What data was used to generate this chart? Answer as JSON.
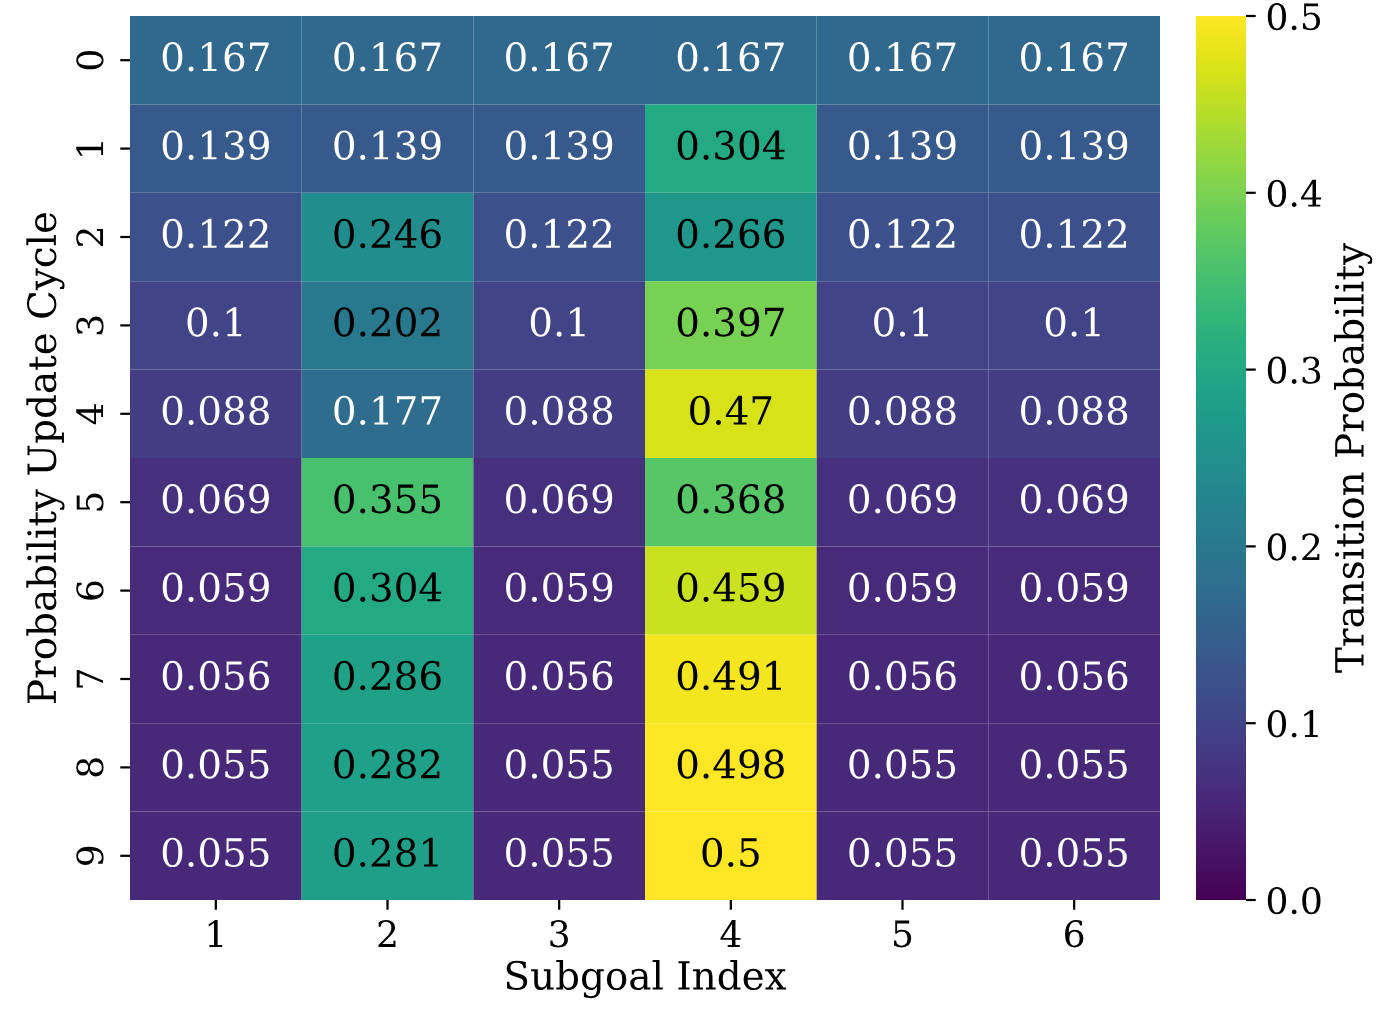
{
  "chart_data": {
    "type": "heatmap",
    "xlabel": "Subgoal Index",
    "ylabel": "Probability Update Cycle",
    "clabel": "Transition Probability",
    "categories": [
      "1",
      "2",
      "3",
      "4",
      "5",
      "6"
    ],
    "y_categories": [
      "0",
      "1",
      "2",
      "3",
      "4",
      "5",
      "6",
      "7",
      "8",
      "9"
    ],
    "cells": [
      [
        0.167,
        0.167,
        0.167,
        0.167,
        0.167,
        0.167
      ],
      [
        0.139,
        0.139,
        0.139,
        0.304,
        0.139,
        0.139
      ],
      [
        0.122,
        0.246,
        0.122,
        0.266,
        0.122,
        0.122
      ],
      [
        0.1,
        0.202,
        0.1,
        0.397,
        0.1,
        0.1
      ],
      [
        0.088,
        0.177,
        0.088,
        0.47,
        0.088,
        0.088
      ],
      [
        0.069,
        0.355,
        0.069,
        0.368,
        0.069,
        0.069
      ],
      [
        0.059,
        0.304,
        0.059,
        0.459,
        0.059,
        0.059
      ],
      [
        0.056,
        0.286,
        0.056,
        0.491,
        0.056,
        0.056
      ],
      [
        0.055,
        0.282,
        0.055,
        0.498,
        0.055,
        0.055
      ],
      [
        0.055,
        0.281,
        0.055,
        0.5,
        0.055,
        0.055
      ]
    ],
    "clim": [
      0.0,
      0.5
    ],
    "cticks": [
      {
        "value": 0.0,
        "label": "0.0"
      },
      {
        "value": 0.1,
        "label": "0.1"
      },
      {
        "value": 0.2,
        "label": "0.2"
      },
      {
        "value": 0.3,
        "label": "0.3"
      },
      {
        "value": 0.4,
        "label": "0.4"
      },
      {
        "value": 0.5,
        "label": "0.5"
      }
    ],
    "data_labels": true
  }
}
